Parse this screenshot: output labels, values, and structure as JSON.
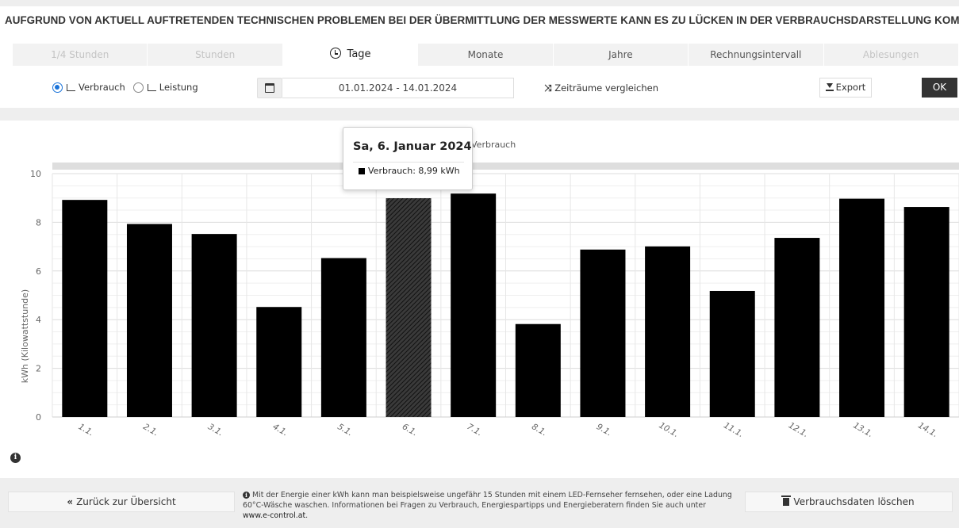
{
  "notice": "AUFGRUND VON AKTUELL AUFTRETENDEN TECHNISCHEN PROBLEMEN BEI DER ÜBERMITTLUNG DER MESSWERTE KANN ES ZU LÜCKEN IN DER VERBRAUCHSDARSTELLUNG KOMMEN.",
  "tabs": [
    {
      "label": "1/4 Stunden",
      "state": "disabled"
    },
    {
      "label": "Stunden",
      "state": "disabled"
    },
    {
      "label": "Tage",
      "state": "active",
      "icon": "clock-icon"
    },
    {
      "label": "Monate",
      "state": "enabled"
    },
    {
      "label": "Jahre",
      "state": "enabled"
    },
    {
      "label": "Rechnungsintervall",
      "state": "enabled"
    },
    {
      "label": "Ablesungen",
      "state": "disabled"
    }
  ],
  "controls": {
    "verbrauch_label": "Verbrauch",
    "leistung_label": "Leistung",
    "selected_mode": "Verbrauch",
    "date_range": "01.01.2024 - 14.01.2024",
    "compare_label": "Zeiträume vergleichen",
    "export_label": "Export",
    "ok_label": "OK"
  },
  "tooltip": {
    "title": "Sa, 6. Januar 2024",
    "row": "Verbrauch: 8,99 kWh"
  },
  "chart_data": {
    "type": "bar",
    "legend_text": "Verbrauch",
    "ylabel": "kWh (Kilowattstunde)",
    "categories": [
      "1.1.",
      "2.1.",
      "3.1.",
      "4.1.",
      "5.1.",
      "6.1.",
      "7.1.",
      "8.1.",
      "9.1.",
      "10.1.",
      "11.1.",
      "12.1.",
      "13.1.",
      "14.1."
    ],
    "values": [
      8.92,
      7.93,
      7.52,
      4.52,
      6.53,
      8.99,
      9.18,
      3.82,
      6.88,
      7.01,
      5.18,
      7.36,
      8.97,
      8.63
    ],
    "highlight_index": 5,
    "ylim": [
      0,
      10
    ],
    "yticks": [
      0,
      2,
      4,
      6,
      8,
      10
    ],
    "grid": true,
    "bar_color": "#000000",
    "legend_placement": "top-center"
  },
  "footer": {
    "back_label": "Zurück zur Übersicht",
    "info_text": "Mit der Energie einer kWh kann man beispielsweise ungefähr 15 Stunden mit einem LED-Fernseher fernsehen, oder eine Ladung 60°C-Wäsche waschen. Informationen bei Fragen zu Verbrauch, Energiespartipps und Energieberatern finden Sie auch unter",
    "info_link": "www.e-control.at",
    "delete_label": "Verbrauchsdaten löschen"
  }
}
